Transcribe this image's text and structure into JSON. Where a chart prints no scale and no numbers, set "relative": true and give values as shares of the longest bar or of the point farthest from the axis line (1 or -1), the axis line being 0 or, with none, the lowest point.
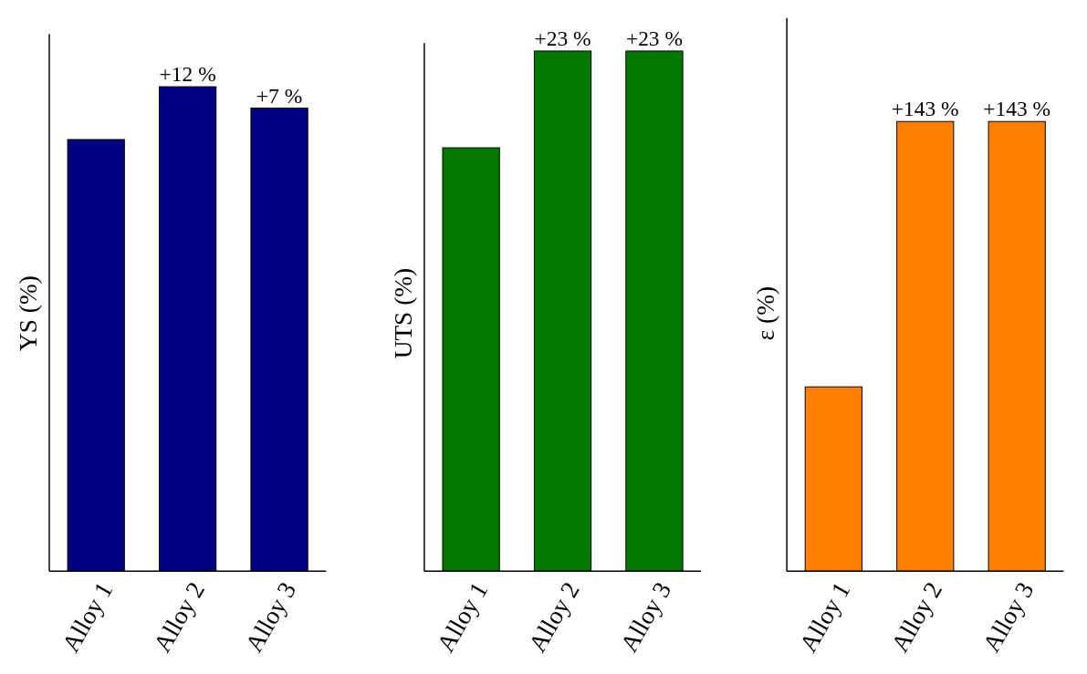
{
  "chart_data": [
    {
      "type": "bar",
      "ylabel": "YS (%)",
      "relative": true,
      "categories": [
        "Alloy 1",
        "Alloy 2",
        "Alloy 3"
      ],
      "values": [
        0.891,
        1,
        0.956
      ],
      "color": "#000080",
      "annotations": [
        {
          "text": "+12 %",
          "x": "Alloy 2",
          "y": 1
        },
        {
          "text": "+7 %",
          "x": "Alloy 3",
          "y": 0.956
        }
      ]
    },
    {
      "type": "bar",
      "ylabel": "UTS (%)",
      "relative": true,
      "categories": [
        "Alloy 1",
        "Alloy 2",
        "Alloy 3"
      ],
      "values": [
        0.814,
        1,
        1
      ],
      "color": "#007800",
      "annotations": [
        {
          "text": "+23 %",
          "x": "Alloy 2",
          "y": 1
        },
        {
          "text": "+23 %",
          "x": "Alloy 3",
          "y": 1
        }
      ]
    },
    {
      "type": "bar",
      "ylabel": "ε (%)",
      "relative": true,
      "categories": [
        "Alloy 1",
        "Alloy 2",
        "Alloy 3"
      ],
      "values": [
        0.41,
        1,
        1
      ],
      "color": "#ff8000",
      "annotations": [
        {
          "text": "+143 %",
          "x": "Alloy 2",
          "y": 1
        },
        {
          "text": "+143 %",
          "x": "Alloy 3",
          "y": 1
        }
      ]
    }
  ]
}
